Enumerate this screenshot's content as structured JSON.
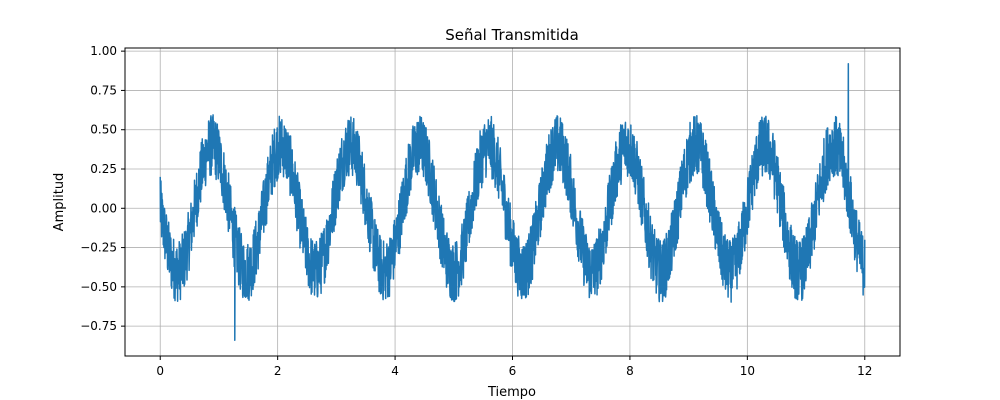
{
  "chart_data": {
    "type": "line",
    "title": "Señal Transmitida",
    "xlabel": "Tiempo",
    "ylabel": "Amplitud",
    "xlim": [
      -0.6,
      12.6
    ],
    "ylim": [
      -0.94,
      1.02
    ],
    "xticks": [
      0,
      2,
      4,
      6,
      8,
      10,
      12
    ],
    "xtick_labels": [
      "0",
      "2",
      "4",
      "6",
      "8",
      "10",
      "12"
    ],
    "yticks": [
      -0.75,
      -0.5,
      -0.25,
      0.0,
      0.25,
      0.5,
      0.75,
      1.0
    ],
    "ytick_labels": [
      "−0.75",
      "−0.50",
      "−0.25",
      "0.00",
      "0.25",
      "0.50",
      "0.75",
      "1.00"
    ],
    "grid": true,
    "series": [
      {
        "color": "#1f77b4",
        "signal": {
          "t_start": 0,
          "t_end": 12,
          "carrier_amplitude": 0.4,
          "carrier_frequency": 0.85,
          "carrier_phase": 3.14,
          "noise_amplitude_typical": 0.2,
          "min": -0.84,
          "max": 0.92,
          "start_value": 0.2,
          "end_value": -0.2
        }
      }
    ]
  }
}
